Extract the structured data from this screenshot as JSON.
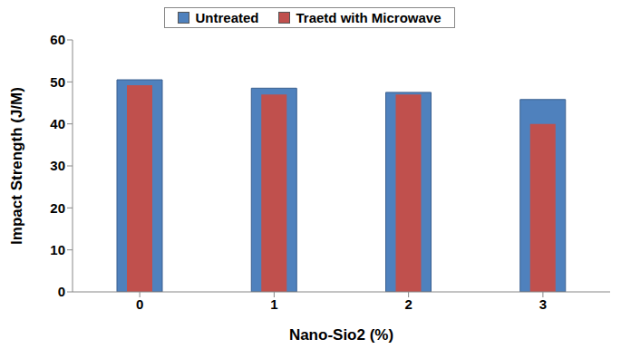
{
  "chart_data": {
    "type": "bar",
    "categories": [
      "0",
      "1",
      "2",
      "3"
    ],
    "series": [
      {
        "name": "Untreated",
        "color": "#4f81bd",
        "values": [
          50.5,
          48.5,
          47.5,
          45.8
        ]
      },
      {
        "name": "Traetd with Microwave",
        "color": "#c0504d",
        "values": [
          49.2,
          47,
          47,
          40
        ]
      }
    ],
    "x_label": "Nano-Sio2 (%)",
    "y_label": "Impact Strength (J/M)",
    "ylim": [
      0,
      60
    ],
    "yticks": [
      0,
      10,
      20,
      30,
      40,
      50,
      60
    ],
    "grid": false,
    "legend": "top"
  }
}
